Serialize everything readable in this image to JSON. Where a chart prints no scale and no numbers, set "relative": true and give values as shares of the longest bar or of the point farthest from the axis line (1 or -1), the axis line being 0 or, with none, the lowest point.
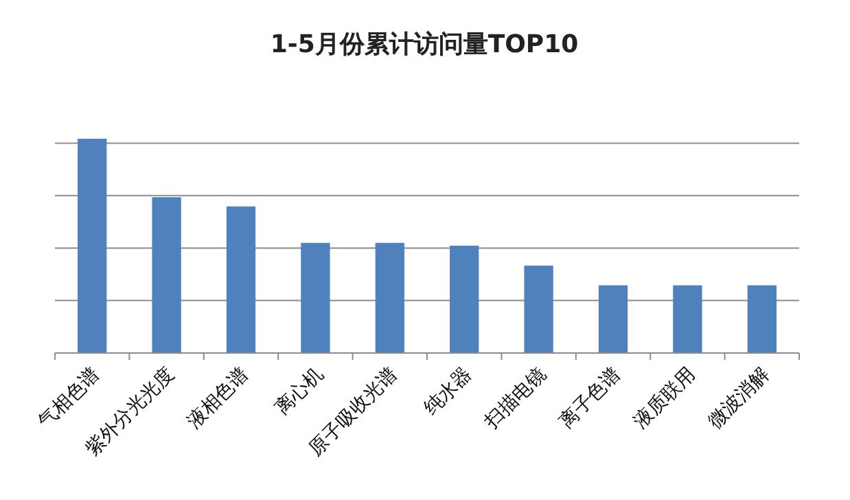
{
  "chart_data": {
    "type": "bar",
    "title": "1-5月份累计访问量TOP10",
    "relative": true,
    "grid": "y",
    "color": "#4f81bd",
    "categories": [
      "气相色谱",
      "紫外分光光度",
      "液相色谱",
      "离心机",
      "原子吸收光谱",
      "纯水器",
      "扫描电镜",
      "离子色谱",
      "液质联用",
      "微波消解"
    ],
    "values": [
      1,
      0.727,
      0.684,
      0.514,
      0.514,
      0.501,
      0.408,
      0.316,
      0.316,
      0.316
    ]
  }
}
